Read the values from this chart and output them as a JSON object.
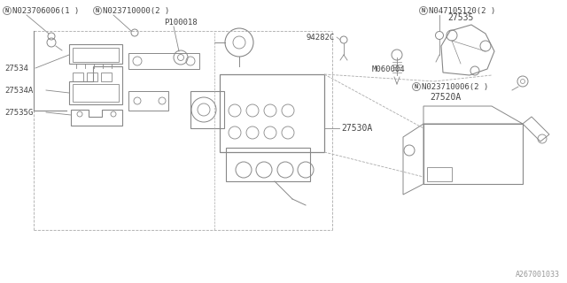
{
  "bg_color": "#ffffff",
  "line_color": "#888888",
  "text_color": "#444444",
  "fig_width": 6.4,
  "fig_height": 3.2,
  "dpi": 100,
  "labels": {
    "N023706006": "N023706006(1 )",
    "N023710000": "N023710000(2 )",
    "P100018": "P100018",
    "27535G": "27535G",
    "27534A": "27534A",
    "27534": "27534",
    "27530A": "27530A",
    "N047105120": "N047105120(2 )",
    "27520A": "27520A",
    "N023710006": "N023710006(2 )",
    "M060004": "M060004",
    "94282C": "94282C",
    "27535": "27535",
    "watermark": "A267001033"
  }
}
